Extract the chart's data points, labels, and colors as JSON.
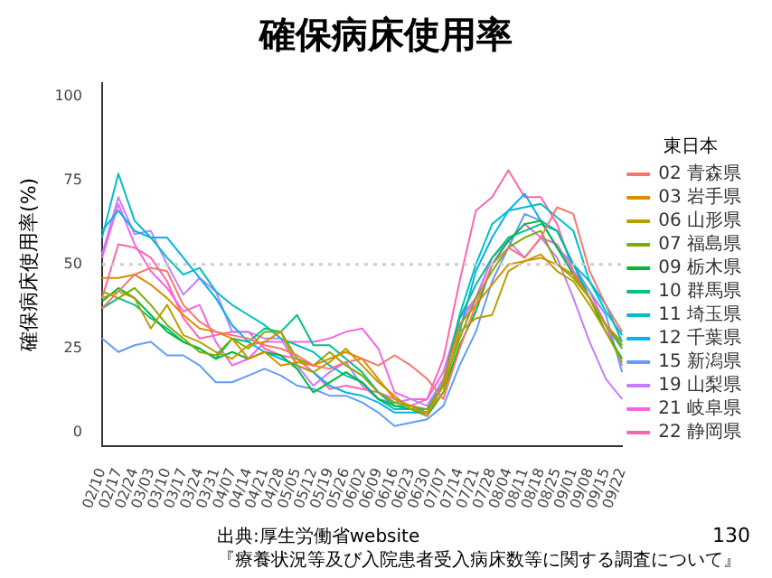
{
  "chart_data": {
    "type": "line",
    "title": "確保病床使用率",
    "ylabel": "確保病床使用率(%)",
    "legend_title": "東日本",
    "legend": "right",
    "grid": false,
    "marker": "none",
    "line_style": "solid",
    "categories": [
      "02/10",
      "02/17",
      "02/24",
      "03/03",
      "03/10",
      "03/17",
      "03/24",
      "03/31",
      "04/07",
      "04/14",
      "04/21",
      "04/28",
      "05/05",
      "05/12",
      "05/19",
      "05/26",
      "06/02",
      "06/09",
      "06/16",
      "06/23",
      "06/30",
      "07/07",
      "07/14",
      "07/21",
      "07/28",
      "08/04",
      "08/11",
      "08/18",
      "08/25",
      "09/01",
      "09/08",
      "09/15",
      "09/22"
    ],
    "ylim": [
      -4,
      104
    ],
    "yticks": [
      0,
      25,
      50,
      75,
      100
    ],
    "ref_lines": [
      {
        "axis": "y",
        "value": 50,
        "color": "#cccccc",
        "line_style": "dotted"
      }
    ],
    "series": [
      {
        "name": "02 青森県",
        "color": "#F8766D",
        "values": [
          37,
          42,
          47,
          49,
          48,
          38,
          33,
          30,
          29,
          28,
          26,
          25,
          23,
          20,
          19,
          21,
          22,
          20,
          23,
          20,
          16,
          10,
          25,
          38,
          50,
          55,
          52,
          58,
          67,
          65,
          48,
          38,
          30
        ]
      },
      {
        "name": "03 岩手県",
        "color": "#DE8C00",
        "values": [
          46,
          46,
          47,
          44,
          40,
          35,
          31,
          30,
          28,
          22,
          24,
          20,
          21,
          20,
          22,
          24,
          22,
          16,
          10,
          8,
          5,
          15,
          32,
          38,
          44,
          50,
          51,
          52,
          50,
          47,
          40,
          32,
          27
        ]
      },
      {
        "name": "06 山形県",
        "color": "#B79F00",
        "values": [
          40,
          42,
          40,
          31,
          38,
          29,
          27,
          24,
          22,
          26,
          27,
          30,
          20,
          18,
          21,
          25,
          20,
          15,
          11,
          7,
          6,
          12,
          30,
          34,
          35,
          48,
          51,
          53,
          48,
          45,
          38,
          30,
          21
        ]
      },
      {
        "name": "07 福島県",
        "color": "#7CAE00",
        "values": [
          42,
          40,
          43,
          38,
          32,
          28,
          24,
          23,
          28,
          25,
          30,
          30,
          22,
          20,
          24,
          20,
          17,
          12,
          9,
          8,
          7,
          14,
          28,
          40,
          48,
          55,
          58,
          60,
          50,
          46,
          40,
          32,
          25
        ]
      },
      {
        "name": "09 栃木県",
        "color": "#00BA38",
        "values": [
          39,
          43,
          40,
          35,
          30,
          27,
          25,
          22,
          24,
          22,
          24,
          23,
          19,
          12,
          15,
          18,
          15,
          10,
          8,
          7,
          5,
          12,
          26,
          36,
          50,
          57,
          62,
          63,
          55,
          47,
          40,
          30,
          22
        ]
      },
      {
        "name": "10 群馬県",
        "color": "#00C08B",
        "values": [
          37,
          40,
          38,
          34,
          31,
          27,
          25,
          22,
          28,
          27,
          31,
          30,
          35,
          26,
          26,
          22,
          18,
          12,
          8,
          8,
          6,
          14,
          34,
          44,
          52,
          58,
          60,
          62,
          60,
          50,
          40,
          32,
          26
        ]
      },
      {
        "name": "11 埼玉県",
        "color": "#00BFC4",
        "values": [
          58,
          77,
          63,
          58,
          52,
          47,
          49,
          42,
          38,
          35,
          32,
          28,
          26,
          24,
          20,
          17,
          15,
          10,
          7,
          7,
          7,
          15,
          35,
          50,
          62,
          66,
          67,
          68,
          64,
          60,
          45,
          36,
          29
        ]
      },
      {
        "name": "12 千葉県",
        "color": "#00B4F0",
        "values": [
          60,
          66,
          60,
          58,
          58,
          52,
          46,
          40,
          32,
          27,
          24,
          22,
          20,
          18,
          14,
          12,
          11,
          9,
          6,
          6,
          6,
          12,
          30,
          48,
          58,
          66,
          71,
          63,
          60,
          50,
          45,
          38,
          27
        ]
      },
      {
        "name": "15 新潟県",
        "color": "#619CFF",
        "values": [
          28,
          24,
          26,
          27,
          23,
          23,
          20,
          15,
          15,
          17,
          19,
          17,
          14,
          13,
          11,
          11,
          9,
          6,
          2,
          3,
          4,
          8,
          20,
          30,
          45,
          55,
          65,
          63,
          55,
          50,
          42,
          35,
          18
        ]
      },
      {
        "name": "19 山梨県",
        "color": "#C77CFF",
        "values": [
          53,
          70,
          59,
          60,
          50,
          41,
          46,
          42,
          30,
          30,
          28,
          28,
          20,
          14,
          18,
          21,
          14,
          10,
          9,
          10,
          8,
          16,
          32,
          40,
          52,
          57,
          52,
          58,
          52,
          40,
          27,
          16,
          10
        ]
      },
      {
        "name": "21 岐阜県",
        "color": "#F564E3",
        "values": [
          52,
          68,
          56,
          48,
          43,
          36,
          38,
          27,
          20,
          22,
          27,
          27,
          27,
          27,
          28,
          30,
          31,
          25,
          12,
          10,
          10,
          18,
          34,
          40,
          52,
          57,
          62,
          58,
          56,
          48,
          42,
          32,
          20
        ]
      },
      {
        "name": "22 静岡県",
        "color": "#FF64B0",
        "values": [
          40,
          56,
          55,
          52,
          45,
          34,
          28,
          29,
          30,
          30,
          25,
          23,
          22,
          18,
          13,
          14,
          13,
          12,
          10,
          8,
          10,
          22,
          45,
          66,
          70,
          78,
          70,
          70,
          62,
          48,
          40,
          32,
          25
        ]
      }
    ],
    "annotations": [
      "出典:厚生労働省website",
      "『療養状況等及び入院患者受入病床数等に関する調査について』",
      "130"
    ]
  }
}
